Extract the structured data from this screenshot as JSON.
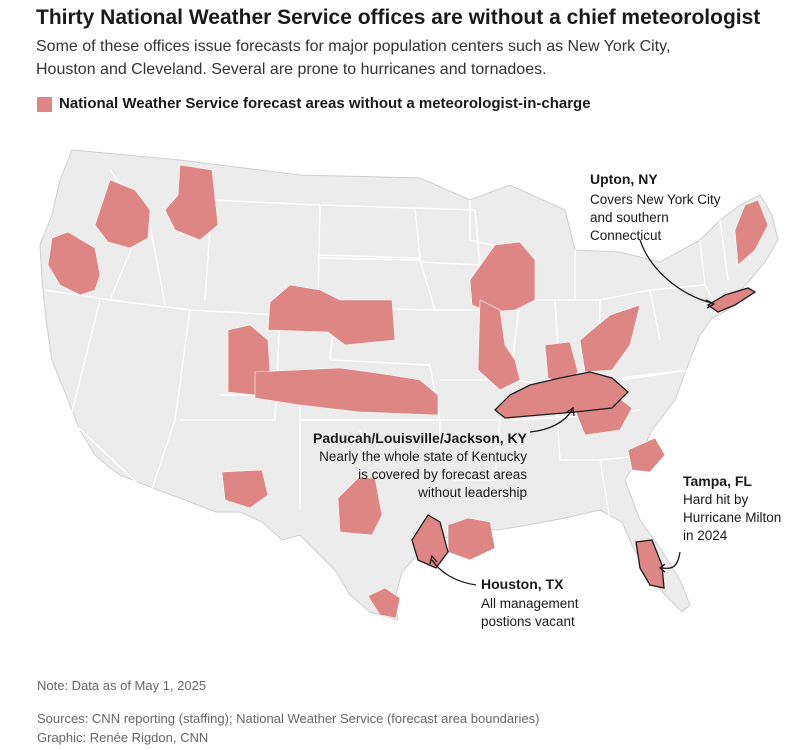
{
  "header": {
    "title": "Thirty National Weather Service offices are without a chief meteorologist",
    "subtitle_line1": "Some of these offices issue forecasts for major population centers such as New York City,",
    "subtitle_line2": "Houston and Cleveland. Several are prone to hurricanes and tornadoes."
  },
  "legend": {
    "label": "National Weather Service forecast areas without a meteorologist-in-charge",
    "color": "#dd8683"
  },
  "colors": {
    "land": "#ececec",
    "state_border": "#ffffff",
    "highlight": "#dd8683",
    "outline": "#1a1a1a"
  },
  "annotations": {
    "upton": {
      "title": "Upton, NY",
      "lines": [
        "Covers New York City",
        "and southern",
        "Connecticut"
      ]
    },
    "kentucky": {
      "title": "Paducah/Louisville/Jackson, KY",
      "lines": [
        "Nearly the whole state of Kentucky",
        "is covered by forecast areas",
        "without leadership"
      ]
    },
    "tampa": {
      "title": "Tampa, FL",
      "lines": [
        "Hard hit by",
        "Hurricane Milton",
        "in 2024"
      ]
    },
    "houston": {
      "title": "Houston, TX",
      "lines": [
        "All management",
        "postions vacant"
      ]
    }
  },
  "footer": {
    "note": "Note: Data as of May 1, 2025",
    "sources": "Sources: CNN reporting (staffing); National Weather Service (forecast area boundaries)",
    "credit": "Graphic: Renée Rigdon, CNN"
  }
}
